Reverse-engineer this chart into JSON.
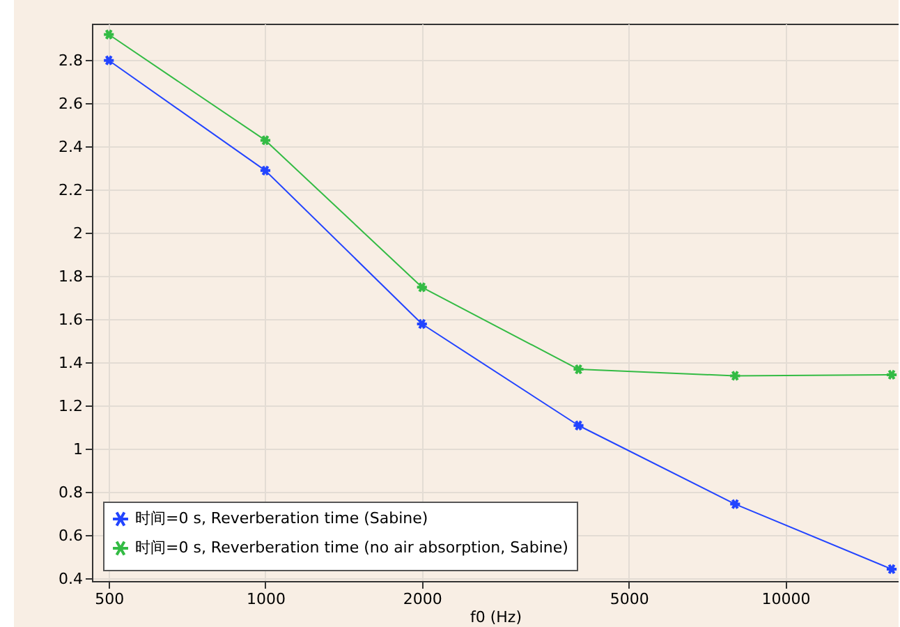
{
  "chart_data": {
    "type": "line",
    "xlabel": "f0 (Hz)",
    "log": "x",
    "x": [
      500,
      1000,
      2000,
      4000,
      8000,
      16000
    ],
    "xlim": [
      464,
      16500
    ],
    "xticks": [
      500,
      1000,
      2000,
      5000,
      10000
    ],
    "ylim": [
      0.39,
      2.97
    ],
    "yticks": [
      0.4,
      0.6,
      0.8,
      1,
      1.2,
      1.4,
      1.6,
      1.8,
      2,
      2.2,
      2.4,
      2.6,
      2.8
    ],
    "series": [
      {
        "name": "时间=0 s, Reverberation time (Sabine)",
        "color": "#2244ff",
        "values": [
          2.8,
          2.29,
          1.58,
          1.11,
          0.746,
          0.445
        ]
      },
      {
        "name": "时间=0 s, Reverberation time (no air absorption, Sabine)",
        "color": "#33bb44",
        "values": [
          2.92,
          2.43,
          1.75,
          1.37,
          1.34,
          1.345
        ]
      }
    ],
    "grid": true,
    "legend": "bottom left",
    "marker": "cross",
    "line_style": "solid"
  }
}
